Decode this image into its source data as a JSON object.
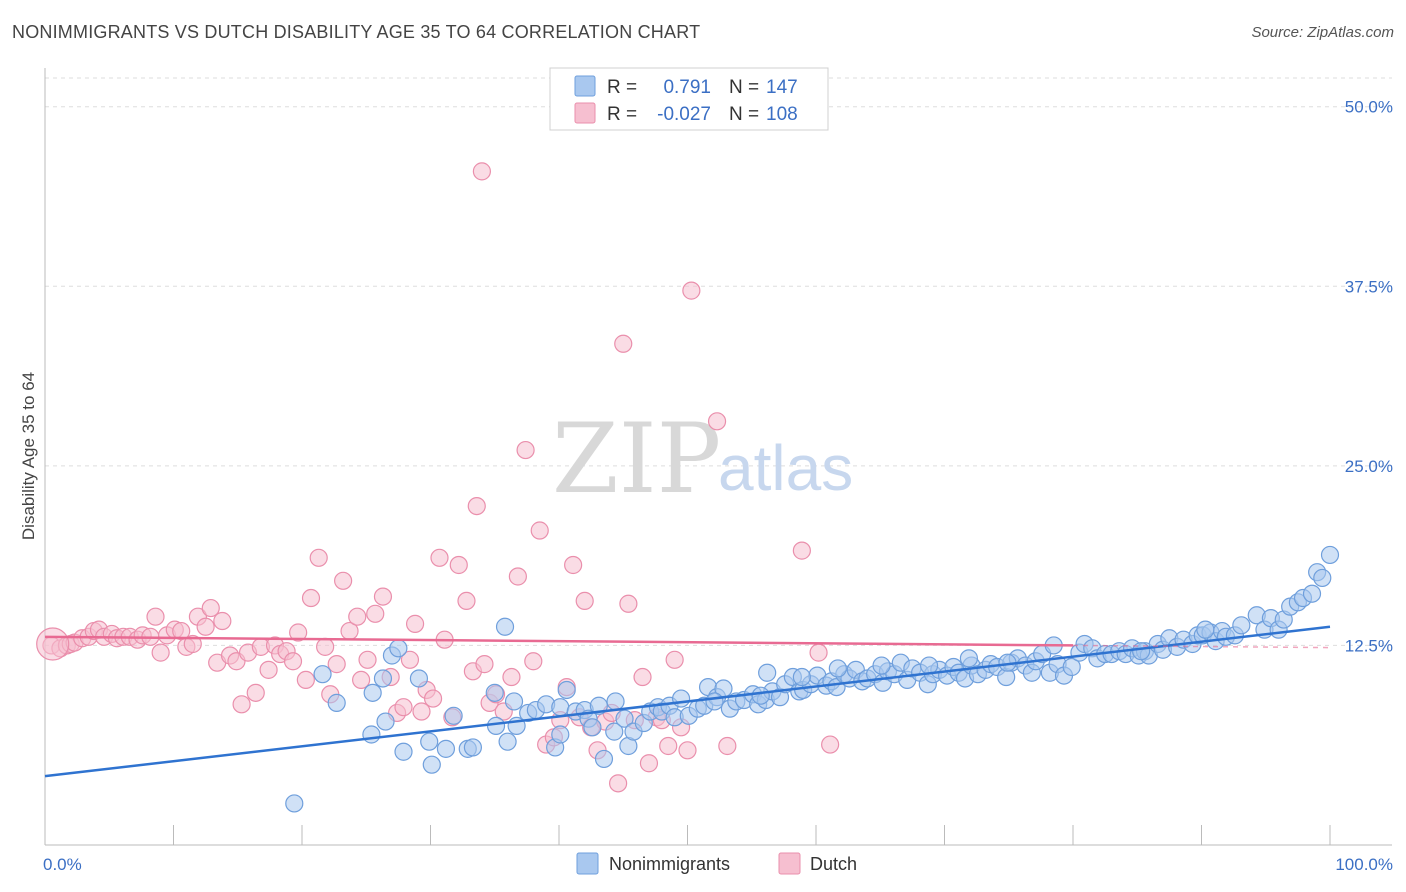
{
  "title": "NONIMMIGRANTS VS DUTCH DISABILITY AGE 35 TO 64 CORRELATION CHART",
  "source": "Source: ZipAtlas.com",
  "watermark": {
    "zip": "ZIP",
    "atlas": "atlas"
  },
  "legend_box": {
    "rows": [
      {
        "r_label": "R =",
        "r_value": "0.791",
        "n_label": "N =",
        "n_value": "147"
      },
      {
        "r_label": "R =",
        "r_value": "-0.027",
        "n_label": "N =",
        "n_value": "108"
      }
    ]
  },
  "bottom_legend": [
    {
      "label": "Nonimmigrants"
    },
    {
      "label": "Dutch"
    }
  ],
  "colors": {
    "blue_fill": "#a9c8ef",
    "blue_stroke": "#6f9fdc",
    "blue_line": "#2f73d0",
    "pink_fill": "#f6bfd0",
    "pink_stroke": "#ea8fac",
    "pink_line": "#e86a92"
  },
  "chart_data": {
    "type": "scatter",
    "title": "NONIMMIGRANTS VS DUTCH DISABILITY AGE 35 TO 64 CORRELATION CHART",
    "xlabel": "",
    "ylabel": "Disability Age 35 to 64",
    "xlim": [
      0,
      100
    ],
    "ylim": [
      0,
      52
    ],
    "x_tick_labels": [
      "0.0%",
      "100.0%"
    ],
    "y_ticks": [
      12.5,
      25.0,
      37.5,
      50.0
    ],
    "y_tick_labels": [
      "12.5%",
      "25.0%",
      "37.5%",
      "50.0%"
    ],
    "grid": true,
    "legend": "top-center",
    "series": [
      {
        "name": "Nonimmigrants",
        "trendline": {
          "x": [
            0,
            100
          ],
          "y": [
            3.4,
            13.8
          ]
        },
        "points": [
          [
            19.4,
            1.5
          ],
          [
            21.6,
            10.5
          ],
          [
            22.7,
            8.5
          ],
          [
            25.5,
            9.2
          ],
          [
            25.4,
            6.3
          ],
          [
            26.3,
            10.2
          ],
          [
            26.5,
            7.2
          ],
          [
            27.0,
            11.8
          ],
          [
            27.5,
            12.3
          ],
          [
            27.9,
            5.1
          ],
          [
            29.1,
            10.2
          ],
          [
            29.9,
            5.8
          ],
          [
            30.1,
            4.2
          ],
          [
            31.2,
            5.3
          ],
          [
            31.8,
            7.6
          ],
          [
            32.9,
            5.3
          ],
          [
            33.3,
            5.4
          ],
          [
            35.0,
            9.2
          ],
          [
            35.1,
            6.9
          ],
          [
            36.0,
            5.8
          ],
          [
            36.5,
            8.6
          ],
          [
            36.7,
            6.9
          ],
          [
            35.8,
            13.8
          ],
          [
            37.6,
            7.8
          ],
          [
            38.2,
            8.0
          ],
          [
            39.0,
            8.4
          ],
          [
            39.7,
            5.4
          ],
          [
            40.1,
            6.3
          ],
          [
            40.1,
            8.2
          ],
          [
            40.6,
            9.4
          ],
          [
            41.3,
            7.9
          ],
          [
            42.0,
            8.0
          ],
          [
            42.3,
            7.4
          ],
          [
            42.6,
            6.8
          ],
          [
            43.1,
            8.3
          ],
          [
            43.5,
            4.6
          ],
          [
            44.3,
            6.5
          ],
          [
            44.4,
            8.6
          ],
          [
            45.1,
            7.4
          ],
          [
            45.4,
            5.5
          ],
          [
            45.8,
            6.5
          ],
          [
            46.6,
            7.1
          ],
          [
            47.1,
            7.9
          ],
          [
            47.7,
            8.2
          ],
          [
            48.0,
            7.9
          ],
          [
            48.6,
            8.3
          ],
          [
            49.0,
            7.5
          ],
          [
            49.5,
            8.8
          ],
          [
            50.1,
            7.6
          ],
          [
            50.8,
            8.1
          ],
          [
            51.3,
            8.3
          ],
          [
            51.6,
            9.6
          ],
          [
            52.3,
            8.9
          ],
          [
            52.8,
            9.5
          ],
          [
            53.3,
            8.1
          ],
          [
            53.8,
            8.6
          ],
          [
            54.4,
            8.7
          ],
          [
            55.1,
            9.1
          ],
          [
            55.5,
            8.4
          ],
          [
            56.1,
            8.7
          ],
          [
            56.6,
            9.3
          ],
          [
            56.2,
            10.6
          ],
          [
            57.2,
            8.9
          ],
          [
            57.6,
            9.8
          ],
          [
            58.2,
            10.3
          ],
          [
            58.7,
            9.3
          ],
          [
            59.0,
            9.4
          ],
          [
            59.6,
            9.8
          ],
          [
            60.1,
            10.4
          ],
          [
            60.8,
            9.7
          ],
          [
            61.2,
            10.0
          ],
          [
            61.6,
            9.6
          ],
          [
            62.2,
            10.5
          ],
          [
            62.6,
            10.2
          ],
          [
            63.1,
            10.8
          ],
          [
            63.6,
            10.0
          ],
          [
            64.0,
            10.2
          ],
          [
            64.6,
            10.5
          ],
          [
            65.2,
            9.9
          ],
          [
            65.6,
            10.7
          ],
          [
            66.1,
            10.5
          ],
          [
            66.6,
            11.3
          ],
          [
            67.1,
            10.1
          ],
          [
            67.5,
            10.9
          ],
          [
            68.1,
            10.6
          ],
          [
            68.7,
            9.8
          ],
          [
            69.1,
            10.5
          ],
          [
            69.6,
            10.8
          ],
          [
            70.2,
            10.4
          ],
          [
            70.7,
            11.0
          ],
          [
            71.1,
            10.6
          ],
          [
            71.6,
            10.2
          ],
          [
            72.1,
            11.1
          ],
          [
            72.6,
            10.5
          ],
          [
            73.2,
            10.8
          ],
          [
            73.6,
            11.2
          ],
          [
            74.1,
            11.0
          ],
          [
            74.8,
            10.3
          ],
          [
            75.2,
            11.3
          ],
          [
            75.7,
            11.6
          ],
          [
            76.3,
            11.1
          ],
          [
            76.8,
            10.6
          ],
          [
            77.1,
            11.4
          ],
          [
            77.6,
            11.9
          ],
          [
            78.2,
            10.6
          ],
          [
            78.8,
            11.2
          ],
          [
            79.3,
            10.4
          ],
          [
            79.9,
            11.0
          ],
          [
            80.5,
            12.0
          ],
          [
            80.9,
            12.6
          ],
          [
            81.5,
            12.3
          ],
          [
            81.9,
            11.6
          ],
          [
            82.5,
            11.9
          ],
          [
            83.0,
            11.9
          ],
          [
            83.6,
            12.1
          ],
          [
            84.1,
            11.9
          ],
          [
            84.6,
            12.3
          ],
          [
            85.1,
            11.8
          ],
          [
            85.6,
            12.1
          ],
          [
            85.9,
            11.8
          ],
          [
            86.6,
            12.6
          ],
          [
            87.0,
            12.2
          ],
          [
            87.5,
            13.0
          ],
          [
            88.1,
            12.4
          ],
          [
            88.6,
            12.9
          ],
          [
            89.3,
            12.6
          ],
          [
            89.7,
            13.2
          ],
          [
            90.1,
            13.2
          ],
          [
            90.7,
            13.4
          ],
          [
            91.1,
            12.8
          ],
          [
            91.6,
            13.5
          ],
          [
            91.9,
            13.1
          ],
          [
            92.6,
            13.2
          ],
          [
            93.1,
            13.9
          ],
          [
            94.3,
            14.6
          ],
          [
            94.9,
            13.6
          ],
          [
            95.4,
            14.4
          ],
          [
            96.0,
            13.6
          ],
          [
            96.4,
            14.3
          ],
          [
            96.9,
            15.2
          ],
          [
            97.5,
            15.5
          ],
          [
            97.9,
            15.8
          ],
          [
            98.6,
            16.1
          ],
          [
            99.0,
            17.6
          ],
          [
            99.4,
            17.2
          ],
          [
            100.0,
            18.8
          ],
          [
            90.3,
            13.6
          ],
          [
            85.3,
            12.1
          ],
          [
            78.5,
            12.5
          ],
          [
            74.9,
            11.3
          ],
          [
            71.9,
            11.6
          ],
          [
            68.8,
            11.1
          ],
          [
            65.1,
            11.1
          ],
          [
            61.7,
            10.9
          ],
          [
            58.9,
            10.3
          ],
          [
            55.7,
            9.0
          ],
          [
            52.1,
            8.6
          ]
        ]
      },
      {
        "name": "Dutch",
        "trendline": {
          "x": [
            0,
            80
          ],
          "y": [
            13.1,
            12.5
          ]
        },
        "points": [
          [
            0.5,
            12.5
          ],
          [
            1.2,
            12.3
          ],
          [
            1.7,
            12.5
          ],
          [
            2.0,
            12.6
          ],
          [
            2.3,
            12.7
          ],
          [
            2.9,
            13.0
          ],
          [
            3.4,
            13.1
          ],
          [
            3.8,
            13.5
          ],
          [
            4.2,
            13.6
          ],
          [
            4.6,
            13.1
          ],
          [
            5.2,
            13.3
          ],
          [
            5.6,
            13.0
          ],
          [
            6.1,
            13.1
          ],
          [
            6.6,
            13.1
          ],
          [
            7.2,
            12.9
          ],
          [
            7.6,
            13.2
          ],
          [
            8.2,
            13.1
          ],
          [
            8.6,
            14.5
          ],
          [
            9.0,
            12.0
          ],
          [
            9.5,
            13.2
          ],
          [
            10.1,
            13.6
          ],
          [
            10.6,
            13.5
          ],
          [
            11.0,
            12.4
          ],
          [
            11.5,
            12.6
          ],
          [
            11.9,
            14.5
          ],
          [
            12.5,
            13.8
          ],
          [
            12.9,
            15.1
          ],
          [
            13.4,
            11.3
          ],
          [
            13.8,
            14.2
          ],
          [
            14.4,
            11.8
          ],
          [
            14.9,
            11.4
          ],
          [
            15.3,
            8.4
          ],
          [
            15.8,
            12.0
          ],
          [
            16.4,
            9.2
          ],
          [
            16.8,
            12.4
          ],
          [
            17.4,
            10.8
          ],
          [
            17.9,
            12.5
          ],
          [
            18.3,
            11.9
          ],
          [
            18.8,
            12.1
          ],
          [
            19.3,
            11.4
          ],
          [
            19.7,
            13.4
          ],
          [
            20.3,
            10.1
          ],
          [
            20.7,
            15.8
          ],
          [
            21.3,
            18.6
          ],
          [
            21.8,
            12.4
          ],
          [
            22.2,
            9.1
          ],
          [
            22.7,
            11.2
          ],
          [
            23.2,
            17.0
          ],
          [
            23.7,
            13.5
          ],
          [
            24.3,
            14.5
          ],
          [
            24.6,
            10.1
          ],
          [
            25.1,
            11.5
          ],
          [
            25.7,
            14.7
          ],
          [
            26.3,
            15.9
          ],
          [
            26.9,
            10.3
          ],
          [
            27.4,
            7.8
          ],
          [
            27.9,
            8.2
          ],
          [
            28.4,
            11.5
          ],
          [
            28.8,
            14.0
          ],
          [
            29.3,
            7.9
          ],
          [
            29.7,
            9.4
          ],
          [
            30.2,
            8.8
          ],
          [
            30.7,
            18.6
          ],
          [
            31.1,
            12.9
          ],
          [
            31.7,
            7.5
          ],
          [
            32.2,
            18.1
          ],
          [
            32.8,
            15.6
          ],
          [
            33.3,
            10.7
          ],
          [
            33.6,
            22.2
          ],
          [
            34.2,
            11.2
          ],
          [
            34.6,
            8.5
          ],
          [
            35.1,
            9.1
          ],
          [
            35.7,
            7.9
          ],
          [
            36.3,
            10.3
          ],
          [
            36.8,
            17.3
          ],
          [
            37.4,
            26.1
          ],
          [
            38.0,
            11.4
          ],
          [
            38.5,
            20.5
          ],
          [
            39.0,
            5.6
          ],
          [
            39.6,
            6.1
          ],
          [
            40.1,
            7.3
          ],
          [
            40.6,
            9.6
          ],
          [
            41.1,
            18.1
          ],
          [
            41.6,
            7.5
          ],
          [
            42.0,
            15.6
          ],
          [
            42.5,
            6.8
          ],
          [
            43.0,
            5.2
          ],
          [
            43.6,
            7.2
          ],
          [
            44.1,
            7.8
          ],
          [
            44.6,
            2.9
          ],
          [
            45.0,
            33.5
          ],
          [
            45.4,
            15.4
          ],
          [
            45.9,
            7.3
          ],
          [
            46.5,
            10.3
          ],
          [
            47.0,
            4.3
          ],
          [
            47.6,
            7.5
          ],
          [
            48.0,
            7.3
          ],
          [
            48.5,
            5.5
          ],
          [
            49.0,
            11.5
          ],
          [
            49.5,
            6.8
          ],
          [
            50.0,
            5.2
          ],
          [
            50.3,
            37.2
          ],
          [
            52.3,
            28.1
          ],
          [
            53.1,
            5.5
          ],
          [
            58.9,
            19.1
          ],
          [
            60.2,
            12.0
          ],
          [
            61.1,
            5.6
          ],
          [
            34.0,
            45.5
          ]
        ]
      }
    ]
  }
}
